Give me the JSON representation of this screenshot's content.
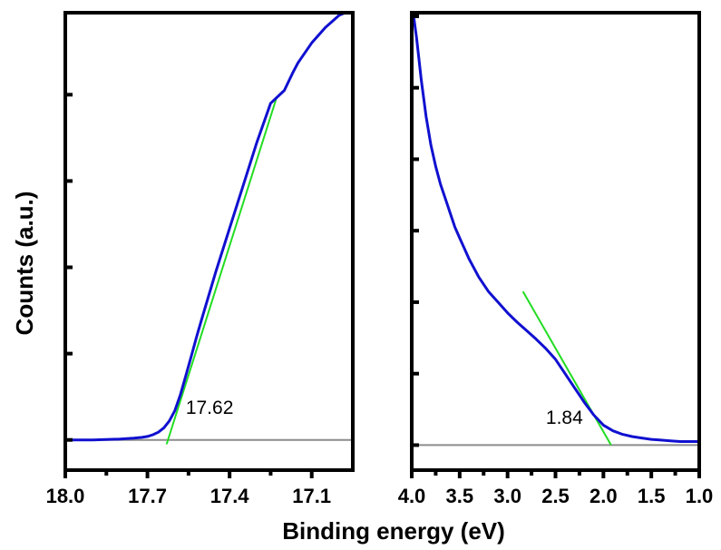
{
  "figure": {
    "ylabel": "Counts (a.u.)",
    "xlabel": "Binding energy (eV)"
  },
  "chart_data": [
    {
      "type": "line",
      "panel": "left",
      "xlim": [
        18.0,
        16.95
      ],
      "ylim": [
        -0.35,
        4.95
      ],
      "x_ticks": [
        18.0,
        17.7,
        17.4,
        17.1
      ],
      "x_tick_labels": [
        "18.0",
        "17.7",
        "17.4",
        "17.1"
      ],
      "y_ticks": [
        0,
        1,
        2,
        3,
        4,
        5
      ],
      "y_tick_labels": [],
      "colors": {
        "spectrum": "#1010d0",
        "fit": "#22dd22",
        "baseline": "#8c8c8c"
      },
      "series": [
        {
          "x": [
            18.0,
            17.9,
            17.8,
            17.75,
            17.72,
            17.7,
            17.68,
            17.66,
            17.64,
            17.62,
            17.6,
            17.58,
            17.56,
            17.54,
            17.52,
            17.5,
            17.45,
            17.4,
            17.35,
            17.3,
            17.25,
            17.2,
            17.17,
            17.15,
            17.1,
            17.05,
            17.0,
            16.95
          ],
          "y": [
            0.0,
            0.0,
            0.01,
            0.02,
            0.03,
            0.04,
            0.06,
            0.09,
            0.14,
            0.22,
            0.34,
            0.52,
            0.74,
            0.97,
            1.2,
            1.42,
            1.95,
            2.45,
            2.95,
            3.45,
            3.9,
            4.05,
            4.25,
            4.37,
            4.6,
            4.78,
            4.92,
            4.99
          ]
        },
        {
          "x": [
            17.63,
            17.23
          ],
          "y": [
            -0.05,
            3.95
          ]
        },
        {
          "x": [
            18.0,
            16.95
          ],
          "y": [
            0.0,
            0.0
          ]
        }
      ],
      "annotations": [
        {
          "text": "17.62",
          "x": 17.56,
          "y": 0.3
        }
      ]
    },
    {
      "type": "line",
      "panel": "right",
      "xlim": [
        4.0,
        1.0
      ],
      "ylim": [
        -0.35,
        6.05
      ],
      "x_ticks": [
        4.0,
        3.5,
        3.0,
        2.5,
        2.0,
        1.5,
        1.0
      ],
      "x_tick_labels": [
        "4.0",
        "3.5",
        "3.0",
        "2.5",
        "2.0",
        "1.5",
        "1.0"
      ],
      "y_ticks": [
        0,
        1,
        2,
        3,
        4,
        5,
        6
      ],
      "y_tick_labels": [],
      "colors": {
        "spectrum": "#1010d0",
        "fit": "#22dd22",
        "baseline": "#8c8c8c"
      },
      "series": [
        {
          "x": [
            3.98,
            3.95,
            3.9,
            3.85,
            3.8,
            3.75,
            3.7,
            3.65,
            3.6,
            3.55,
            3.5,
            3.4,
            3.3,
            3.2,
            3.1,
            3.0,
            2.9,
            2.8,
            2.7,
            2.6,
            2.5,
            2.4,
            2.3,
            2.2,
            2.1,
            2.0,
            1.9,
            1.8,
            1.7,
            1.6,
            1.5,
            1.4,
            1.3,
            1.2,
            1.1,
            1.0
          ],
          "y": [
            6.0,
            5.7,
            5.1,
            4.6,
            4.2,
            3.9,
            3.65,
            3.45,
            3.25,
            3.05,
            2.9,
            2.6,
            2.35,
            2.15,
            2.0,
            1.85,
            1.72,
            1.6,
            1.48,
            1.35,
            1.2,
            1.0,
            0.8,
            0.6,
            0.42,
            0.28,
            0.2,
            0.15,
            0.12,
            0.1,
            0.08,
            0.07,
            0.06,
            0.05,
            0.05,
            0.05
          ]
        },
        {
          "x": [
            2.84,
            1.92
          ],
          "y": [
            2.15,
            0.0
          ]
        },
        {
          "x": [
            4.0,
            1.0
          ],
          "y": [
            0.0,
            0.0
          ]
        }
      ],
      "annotations": [
        {
          "text": "1.84",
          "x": 2.6,
          "y": 0.3
        }
      ]
    }
  ]
}
